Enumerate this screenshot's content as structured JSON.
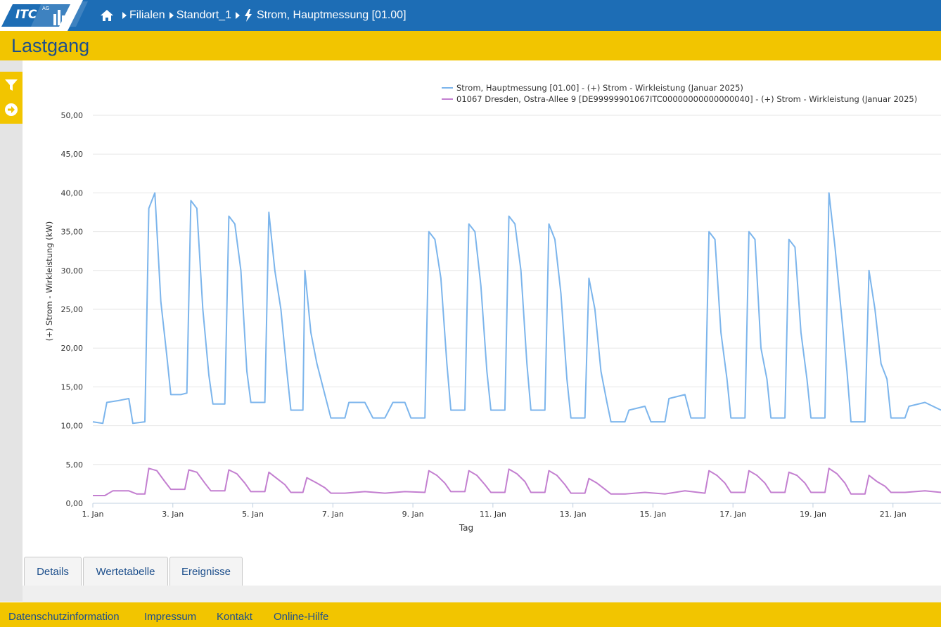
{
  "header": {
    "logo_text": "ITC",
    "logo_superscript": "AG",
    "breadcrumb": [
      {
        "label": "Filialen"
      },
      {
        "label": "Standort_1"
      },
      {
        "label": "Strom, Hauptmessung [01.00]"
      }
    ]
  },
  "page": {
    "title": "Lastgang"
  },
  "tabs": [
    {
      "label": "Details"
    },
    {
      "label": "Wertetabelle"
    },
    {
      "label": "Ereignisse"
    }
  ],
  "footer": {
    "links": [
      {
        "label": "Datenschutzinformation"
      },
      {
        "label": "Impressum"
      },
      {
        "label": "Kontakt"
      },
      {
        "label": "Online-Hilfe"
      }
    ]
  },
  "colors": {
    "brand_blue": "#1d6db5",
    "brand_yellow": "#f2c500",
    "series_main": "#7cb5ec",
    "series_secondary": "#c37fd0"
  },
  "chart_data": {
    "type": "line",
    "xlabel": "Tag",
    "ylabel": "(+) Strom - Wirkleistung (kW)",
    "ylim": [
      0,
      50
    ],
    "yticks": [
      "0,00",
      "5,00",
      "10,00",
      "15,00",
      "20,00",
      "25,00",
      "30,00",
      "35,00",
      "40,00",
      "45,00",
      "50,00"
    ],
    "xticks": [
      "1. Jan",
      "3. Jan",
      "5. Jan",
      "7. Jan",
      "9. Jan",
      "11. Jan",
      "13. Jan",
      "15. Jan",
      "17. Jan",
      "19. Jan",
      "21. Jan"
    ],
    "xlim_days": [
      1,
      22.2
    ],
    "legend_position": "top-right",
    "grid": true,
    "series": [
      {
        "name": "Strom, Hauptmessung [01.00] - (+) Strom - Wirkleistung (Januar 2025)",
        "color": "#7cb5ec",
        "points": [
          [
            1.0,
            10.5
          ],
          [
            1.25,
            10.3
          ],
          [
            1.35,
            13.0
          ],
          [
            1.6,
            13.2
          ],
          [
            1.9,
            13.5
          ],
          [
            2.0,
            10.3
          ],
          [
            2.3,
            10.5
          ],
          [
            2.4,
            38.0
          ],
          [
            2.55,
            40.0
          ],
          [
            2.7,
            26.0
          ],
          [
            2.85,
            19.0
          ],
          [
            2.95,
            14.0
          ],
          [
            3.2,
            14.0
          ],
          [
            3.35,
            14.2
          ],
          [
            3.45,
            39.0
          ],
          [
            3.6,
            38.0
          ],
          [
            3.75,
            25.0
          ],
          [
            3.9,
            16.5
          ],
          [
            4.0,
            12.8
          ],
          [
            4.3,
            12.8
          ],
          [
            4.4,
            37.0
          ],
          [
            4.55,
            36.0
          ],
          [
            4.7,
            30.0
          ],
          [
            4.85,
            17.0
          ],
          [
            4.95,
            13.0
          ],
          [
            5.3,
            13.0
          ],
          [
            5.4,
            37.5
          ],
          [
            5.55,
            30.0
          ],
          [
            5.7,
            25.0
          ],
          [
            5.85,
            17.0
          ],
          [
            5.95,
            12.0
          ],
          [
            6.25,
            12.0
          ],
          [
            6.3,
            30.0
          ],
          [
            6.45,
            22.0
          ],
          [
            6.6,
            18.0
          ],
          [
            6.8,
            14.0
          ],
          [
            6.95,
            11.0
          ],
          [
            7.3,
            11.0
          ],
          [
            7.4,
            13.0
          ],
          [
            7.8,
            13.0
          ],
          [
            8.0,
            11.0
          ],
          [
            8.3,
            11.0
          ],
          [
            8.5,
            13.0
          ],
          [
            8.8,
            13.0
          ],
          [
            8.95,
            11.0
          ],
          [
            9.3,
            11.0
          ],
          [
            9.4,
            35.0
          ],
          [
            9.55,
            34.0
          ],
          [
            9.7,
            29.0
          ],
          [
            9.85,
            18.0
          ],
          [
            9.95,
            12.0
          ],
          [
            10.3,
            12.0
          ],
          [
            10.4,
            36.0
          ],
          [
            10.55,
            35.0
          ],
          [
            10.7,
            28.0
          ],
          [
            10.85,
            17.0
          ],
          [
            10.95,
            12.0
          ],
          [
            11.3,
            12.0
          ],
          [
            11.4,
            37.0
          ],
          [
            11.55,
            36.0
          ],
          [
            11.7,
            30.0
          ],
          [
            11.85,
            18.0
          ],
          [
            11.95,
            12.0
          ],
          [
            12.3,
            12.0
          ],
          [
            12.4,
            36.0
          ],
          [
            12.55,
            34.0
          ],
          [
            12.7,
            27.0
          ],
          [
            12.85,
            16.0
          ],
          [
            12.95,
            11.0
          ],
          [
            13.3,
            11.0
          ],
          [
            13.4,
            29.0
          ],
          [
            13.55,
            25.0
          ],
          [
            13.7,
            17.0
          ],
          [
            13.85,
            13.0
          ],
          [
            13.95,
            10.5
          ],
          [
            14.3,
            10.5
          ],
          [
            14.4,
            12.0
          ],
          [
            14.8,
            12.5
          ],
          [
            14.95,
            10.5
          ],
          [
            15.3,
            10.5
          ],
          [
            15.4,
            13.5
          ],
          [
            15.8,
            14.0
          ],
          [
            15.95,
            11.0
          ],
          [
            16.3,
            11.0
          ],
          [
            16.4,
            35.0
          ],
          [
            16.55,
            34.0
          ],
          [
            16.7,
            22.0
          ],
          [
            16.85,
            16.0
          ],
          [
            16.95,
            11.0
          ],
          [
            17.3,
            11.0
          ],
          [
            17.4,
            35.0
          ],
          [
            17.55,
            34.0
          ],
          [
            17.7,
            20.0
          ],
          [
            17.85,
            16.0
          ],
          [
            17.95,
            11.0
          ],
          [
            18.3,
            11.0
          ],
          [
            18.4,
            34.0
          ],
          [
            18.55,
            33.0
          ],
          [
            18.7,
            22.0
          ],
          [
            18.85,
            16.0
          ],
          [
            18.95,
            11.0
          ],
          [
            19.3,
            11.0
          ],
          [
            19.4,
            40.0
          ],
          [
            19.55,
            33.0
          ],
          [
            19.7,
            25.0
          ],
          [
            19.85,
            17.0
          ],
          [
            19.95,
            10.5
          ],
          [
            20.3,
            10.5
          ],
          [
            20.4,
            30.0
          ],
          [
            20.55,
            25.0
          ],
          [
            20.7,
            18.0
          ],
          [
            20.85,
            16.0
          ],
          [
            20.95,
            11.0
          ],
          [
            21.3,
            11.0
          ],
          [
            21.4,
            12.5
          ],
          [
            21.8,
            13.0
          ],
          [
            22.2,
            12.0
          ]
        ]
      },
      {
        "name": "01067 Dresden, Ostra-Allee 9 [DE99999901067ITC00000000000000040] - (+) Strom - Wirkleistung (Januar 2025)",
        "color": "#c37fd0",
        "points": [
          [
            1.0,
            1.0
          ],
          [
            1.3,
            1.0
          ],
          [
            1.5,
            1.6
          ],
          [
            1.9,
            1.6
          ],
          [
            2.1,
            1.2
          ],
          [
            2.3,
            1.2
          ],
          [
            2.4,
            4.5
          ],
          [
            2.6,
            4.2
          ],
          [
            2.8,
            2.8
          ],
          [
            2.95,
            1.8
          ],
          [
            3.3,
            1.8
          ],
          [
            3.4,
            4.3
          ],
          [
            3.6,
            4.0
          ],
          [
            3.8,
            2.6
          ],
          [
            3.95,
            1.6
          ],
          [
            4.3,
            1.6
          ],
          [
            4.4,
            4.3
          ],
          [
            4.6,
            3.8
          ],
          [
            4.8,
            2.6
          ],
          [
            4.95,
            1.5
          ],
          [
            5.3,
            1.5
          ],
          [
            5.4,
            4.0
          ],
          [
            5.6,
            3.2
          ],
          [
            5.8,
            2.4
          ],
          [
            5.95,
            1.4
          ],
          [
            6.25,
            1.4
          ],
          [
            6.35,
            3.3
          ],
          [
            6.6,
            2.6
          ],
          [
            6.8,
            2.0
          ],
          [
            6.95,
            1.3
          ],
          [
            7.3,
            1.3
          ],
          [
            7.8,
            1.5
          ],
          [
            8.3,
            1.3
          ],
          [
            8.8,
            1.5
          ],
          [
            9.3,
            1.4
          ],
          [
            9.4,
            4.2
          ],
          [
            9.6,
            3.6
          ],
          [
            9.8,
            2.6
          ],
          [
            9.95,
            1.5
          ],
          [
            10.3,
            1.5
          ],
          [
            10.4,
            4.2
          ],
          [
            10.6,
            3.6
          ],
          [
            10.8,
            2.4
          ],
          [
            10.95,
            1.4
          ],
          [
            11.3,
            1.4
          ],
          [
            11.4,
            4.4
          ],
          [
            11.6,
            3.8
          ],
          [
            11.8,
            2.8
          ],
          [
            11.95,
            1.4
          ],
          [
            12.3,
            1.4
          ],
          [
            12.4,
            4.2
          ],
          [
            12.6,
            3.6
          ],
          [
            12.8,
            2.4
          ],
          [
            12.95,
            1.3
          ],
          [
            13.3,
            1.3
          ],
          [
            13.4,
            3.2
          ],
          [
            13.6,
            2.6
          ],
          [
            13.8,
            1.8
          ],
          [
            13.95,
            1.2
          ],
          [
            14.3,
            1.2
          ],
          [
            14.8,
            1.4
          ],
          [
            15.3,
            1.2
          ],
          [
            15.8,
            1.6
          ],
          [
            16.3,
            1.3
          ],
          [
            16.4,
            4.2
          ],
          [
            16.6,
            3.6
          ],
          [
            16.8,
            2.6
          ],
          [
            16.95,
            1.4
          ],
          [
            17.3,
            1.4
          ],
          [
            17.4,
            4.2
          ],
          [
            17.6,
            3.6
          ],
          [
            17.8,
            2.6
          ],
          [
            17.95,
            1.4
          ],
          [
            18.3,
            1.4
          ],
          [
            18.4,
            4.0
          ],
          [
            18.6,
            3.6
          ],
          [
            18.8,
            2.6
          ],
          [
            18.95,
            1.4
          ],
          [
            19.3,
            1.4
          ],
          [
            19.4,
            4.5
          ],
          [
            19.6,
            3.8
          ],
          [
            19.8,
            2.6
          ],
          [
            19.95,
            1.2
          ],
          [
            20.3,
            1.2
          ],
          [
            20.4,
            3.6
          ],
          [
            20.6,
            2.8
          ],
          [
            20.8,
            2.2
          ],
          [
            20.95,
            1.4
          ],
          [
            21.3,
            1.4
          ],
          [
            21.8,
            1.6
          ],
          [
            22.2,
            1.4
          ]
        ]
      }
    ]
  }
}
